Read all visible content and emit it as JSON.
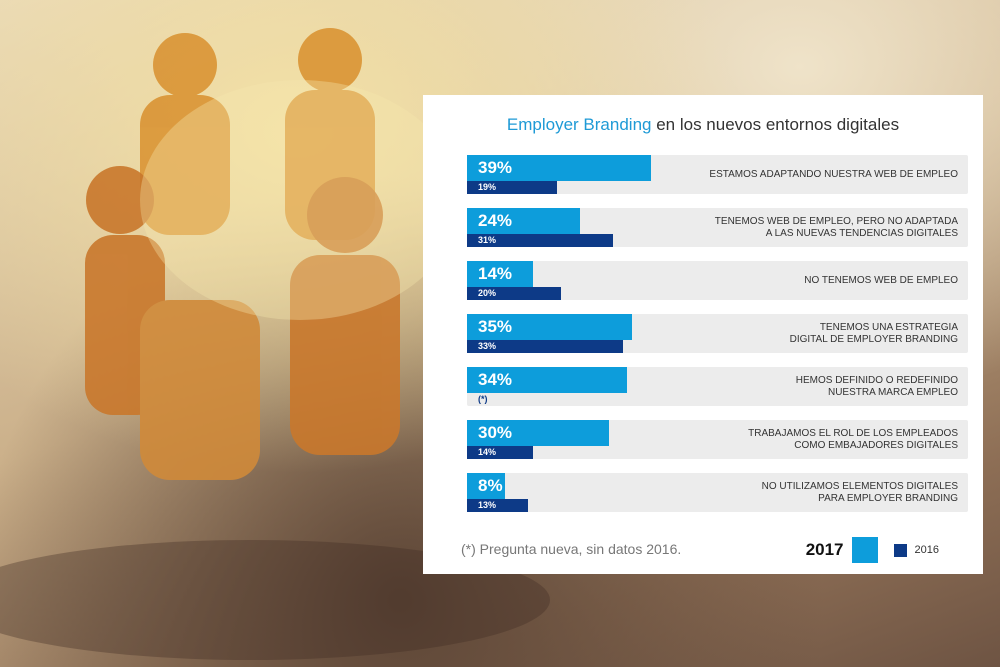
{
  "chart_data": {
    "type": "bar",
    "orientation": "horizontal",
    "title": "Employer Branding en los nuevos entornos digitales",
    "title_highlight": "Employer Branding",
    "title_rest": " en los nuevos entornos digitales",
    "categories": [
      "ESTAMOS ADAPTANDO NUESTRA WEB DE EMPLEO",
      "TENEMOS WEB DE EMPLEO, PERO NO ADAPTADA\nA LAS NUEVAS TENDENCIAS DIGITALES",
      "NO TENEMOS WEB DE EMPLEO",
      "TENEMOS UNA ESTRATEGIA\nDIGITAL DE EMPLOYER BRANDING",
      "HEMOS DEFINIDO O REDEFINIDO\nNUESTRA MARCA EMPLEO",
      "TRABAJAMOS EL ROL DE LOS EMPLEADOS\nCOMO EMBAJADORES DIGITALES",
      "NO UTILIZAMOS ELEMENTOS DIGITALES\nPARA EMPLOYER BRANDING"
    ],
    "series": [
      {
        "name": "2017",
        "color": "#0d9ddb",
        "values": [
          39,
          24,
          14,
          35,
          34,
          30,
          8
        ]
      },
      {
        "name": "2016",
        "color": "#0d3a87",
        "values": [
          19,
          31,
          20,
          33,
          null,
          14,
          13
        ]
      }
    ],
    "missing_label": "(*)",
    "unit": "%",
    "footnote": "(*) Pregunta nueva, sin datos 2016.",
    "legend": {
      "placement": "bottom-right",
      "items": [
        "2017",
        "2016"
      ]
    }
  }
}
